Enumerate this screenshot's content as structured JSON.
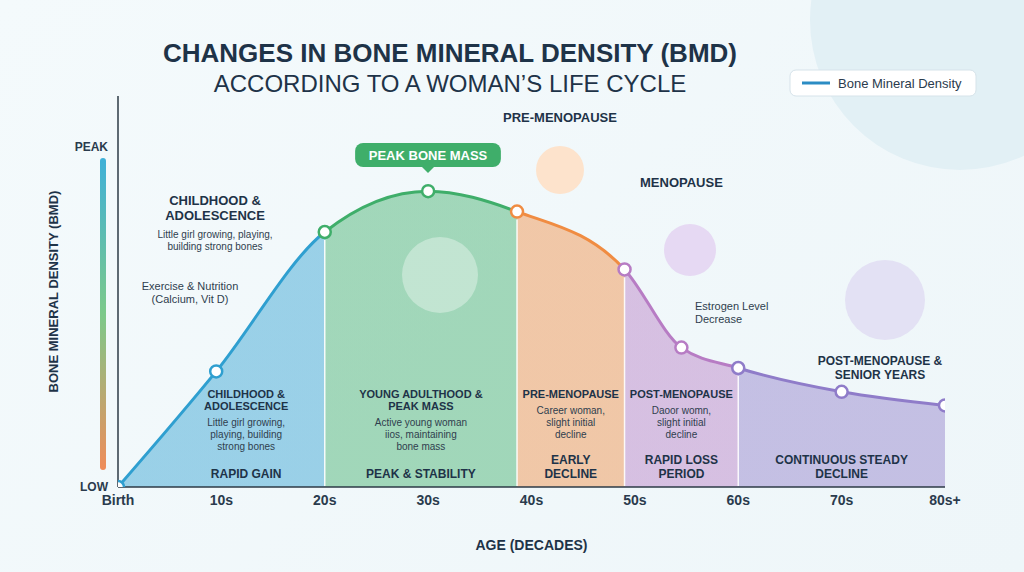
{
  "chart_data": {
    "type": "area",
    "title": "CHANGES IN BONE MINERAL DENSITY (BMD)",
    "subtitle": "ACCORDING TO A WOMAN’S LIFE CYCLE",
    "x_label": "AGE (DECADES)",
    "y_label": "BONE MINERAL DENSITY (BMD)",
    "x": [
      0,
      9.5,
      20,
      30,
      38.6,
      49,
      54.5,
      60,
      70,
      80
    ],
    "series": [
      {
        "name": "Bone Mineral Density",
        "color": "#2b8cc4",
        "values": [
          0,
          34,
          75,
          87,
          81,
          64,
          41,
          35,
          28,
          24
        ]
      }
    ],
    "xlim": [
      0,
      80
    ],
    "xticks": [
      {
        "value": 0,
        "label": "Birth"
      },
      {
        "value": 10,
        "label": "10s"
      },
      {
        "value": 20,
        "label": "20s"
      },
      {
        "value": 30,
        "label": "30s"
      },
      {
        "value": 40,
        "label": "40s"
      },
      {
        "value": 50,
        "label": "50s"
      },
      {
        "value": 60,
        "label": "60s"
      },
      {
        "value": 70,
        "label": "70s"
      },
      {
        "value": 80,
        "label": "80s+"
      }
    ],
    "ylim": [
      0,
      115
    ],
    "yticks": [
      {
        "value": 0,
        "label": "LOW"
      },
      {
        "value": 100,
        "label": "PEAK"
      }
    ],
    "grid": false,
    "legend": "top right",
    "marker": "circle",
    "phases": [
      {
        "start": 0,
        "end": 20,
        "color": "#2f9fd0",
        "title": "CHILDHOOD & ADOLESCENCE",
        "caption": "Little girl growing, playing, building strong bones",
        "label": "RAPID GAIN"
      },
      {
        "start": 20,
        "end": 38.6,
        "color": "#3fae6a",
        "title": "YOUNG ADULTHOOD & PEAK MASS",
        "caption": "Active young woman iios, maintaining bone mass",
        "label": "PEAK & STABILITY"
      },
      {
        "start": 38.6,
        "end": 49,
        "color": "#f08c42",
        "title": "PRE-MENOPAUSE",
        "caption": "Career woman, slight initial decline",
        "label": "EARLY DECLINE"
      },
      {
        "start": 49,
        "end": 60,
        "color": "#b77cc4",
        "title": "POST-MENOPAUSE",
        "caption": "Daoor womn, slight initial decline",
        "label": "RAPID LOSS PERIOD"
      },
      {
        "start": 60,
        "end": 80,
        "color": "#8f7cc9",
        "label": "CONTINUOUS STEADY DECLINE"
      }
    ],
    "annotations": [
      "PEAK BONE MASS",
      "CHILDHOOD & ADOLESCENCE",
      "Little girl growing, playing, building strong bones",
      "Exercise & Nutrition (Calcium, Vit D)",
      "PRE-MENOPAUSE",
      "MENOPAUSE",
      "Estrogen Level Decrease",
      "POST-MENOPAUSE & SENIOR YEARS"
    ]
  }
}
